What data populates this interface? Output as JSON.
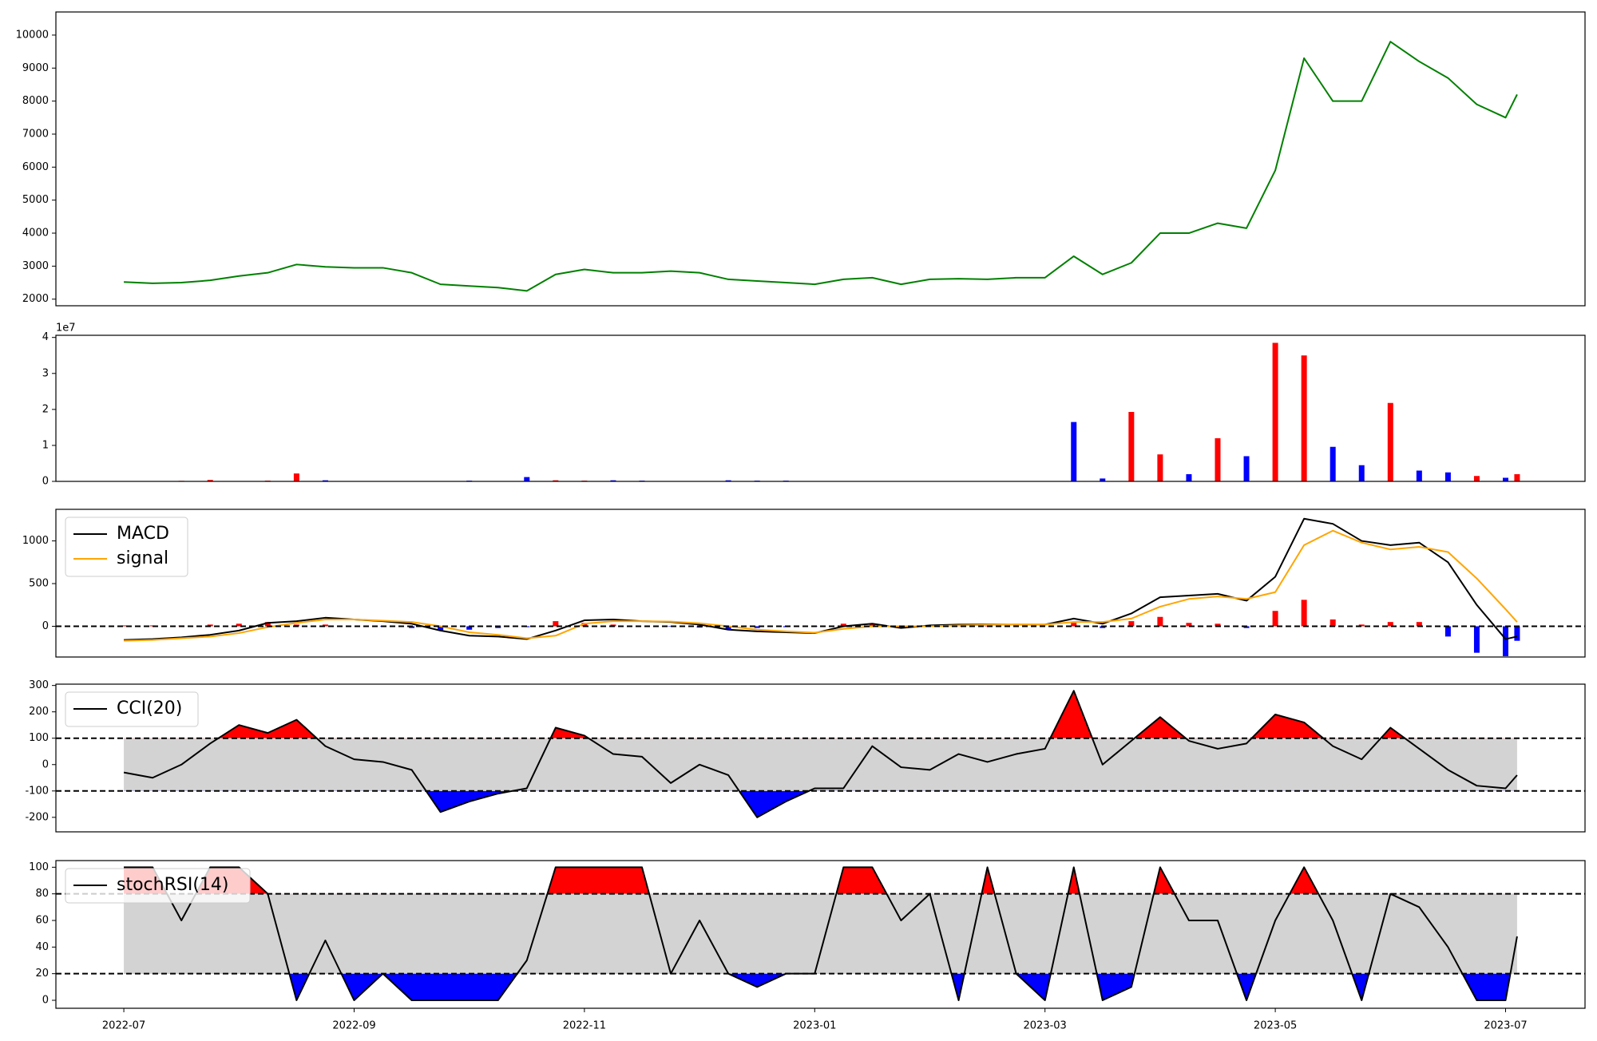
{
  "chart_data": [
    {
      "type": "line",
      "x": [
        0,
        0.25,
        0.5,
        0.75,
        1,
        1.25,
        1.5,
        1.75,
        2,
        2.25,
        2.5,
        2.75,
        3,
        3.25,
        3.5,
        3.75,
        4,
        4.25,
        4.5,
        4.75,
        5,
        5.25,
        5.5,
        5.75,
        6,
        6.25,
        6.5,
        6.75,
        7,
        7.25,
        7.5,
        7.75,
        8,
        8.25,
        8.5,
        8.75,
        9,
        9.25,
        9.5,
        9.75,
        10,
        10.25,
        10.5,
        10.75,
        11,
        11.25,
        11.5,
        11.75,
        12,
        12.1
      ],
      "series": [
        {
          "color": "green",
          "values": [
            2520,
            2480,
            2500,
            2570,
            2700,
            2800,
            3050,
            2980,
            2950,
            2950,
            2800,
            2450,
            2400,
            2350,
            2250,
            2750,
            2900,
            2800,
            2800,
            2850,
            2800,
            2600,
            2550,
            2500,
            2450,
            2600,
            2650,
            2450,
            2600,
            2620,
            2600,
            2650,
            2650,
            3300,
            2750,
            3100,
            4000,
            4000,
            4300,
            4150,
            5900,
            9300,
            8000,
            8000,
            9800,
            9200,
            8700,
            7900,
            7500,
            8200
          ]
        }
      ],
      "xlim": [
        -0.59,
        12.69
      ],
      "ylim": [
        1800,
        10700
      ],
      "yticks": [
        2000,
        3000,
        4000,
        5000,
        6000,
        7000,
        8000,
        9000,
        10000
      ]
    },
    {
      "type": "bar",
      "x": [
        0,
        0.25,
        0.5,
        0.75,
        1,
        1.25,
        1.5,
        1.75,
        2,
        2.25,
        2.5,
        2.75,
        3,
        3.25,
        3.5,
        3.75,
        4,
        4.25,
        4.5,
        4.75,
        5,
        5.25,
        5.5,
        5.75,
        6,
        6.25,
        6.5,
        6.75,
        7,
        7.25,
        7.5,
        7.75,
        8,
        8.25,
        8.5,
        8.75,
        9,
        9.25,
        9.5,
        9.75,
        10,
        10.25,
        10.5,
        10.75,
        11,
        11.25,
        11.5,
        11.75,
        12,
        12.1
      ],
      "series": [
        {
          "values": [
            100000,
            100000,
            150000,
            400000,
            100000,
            200000,
            2200000,
            300000,
            100000,
            100000,
            100000,
            100000,
            200000,
            100000,
            1200000,
            300000,
            200000,
            300000,
            200000,
            100000,
            100000,
            300000,
            200000,
            200000,
            100000,
            100000,
            100000,
            100000,
            100000,
            100000,
            100000,
            100000,
            100000,
            16500000,
            800000,
            19300000,
            7500000,
            2000000,
            12000000,
            7000000,
            38500000,
            35000000,
            9600000,
            4500000,
            21800000,
            3000000,
            2500000,
            1500000,
            1000000,
            2000000
          ],
          "colors": [
            "red",
            "blue",
            "red",
            "red",
            "red",
            "red",
            "red",
            "blue",
            "blue",
            "blue",
            "blue",
            "blue",
            "blue",
            "blue",
            "blue",
            "red",
            "red",
            "blue",
            "blue",
            "red",
            "blue",
            "blue",
            "blue",
            "blue",
            "blue",
            "red",
            "red",
            "blue",
            "red",
            "red",
            "blue",
            "red",
            "blue",
            "blue",
            "blue",
            "red",
            "red",
            "blue",
            "red",
            "blue",
            "red",
            "red",
            "blue",
            "blue",
            "red",
            "blue",
            "blue",
            "red",
            "blue",
            "red"
          ]
        }
      ],
      "xlim": [
        -0.59,
        12.69
      ],
      "ylim": [
        0,
        40600000
      ],
      "offset_label": "1e7",
      "yticks": [
        {
          "value": 0,
          "label": "0"
        },
        {
          "value": 10000000,
          "label": "1"
        },
        {
          "value": 20000000,
          "label": "2"
        },
        {
          "value": 30000000,
          "label": "3"
        },
        {
          "value": 40000000,
          "label": "4"
        }
      ]
    },
    {
      "type": "line",
      "x": [
        0,
        0.25,
        0.5,
        0.75,
        1,
        1.25,
        1.5,
        1.75,
        2,
        2.25,
        2.5,
        2.75,
        3,
        3.25,
        3.5,
        3.75,
        4,
        4.25,
        4.5,
        4.75,
        5,
        5.25,
        5.5,
        5.75,
        6,
        6.25,
        6.5,
        6.75,
        7,
        7.25,
        7.5,
        7.75,
        8,
        8.25,
        8.5,
        8.75,
        9,
        9.25,
        9.5,
        9.75,
        10,
        10.25,
        10.5,
        10.75,
        11,
        11.25,
        11.5,
        11.75,
        12,
        12.1
      ],
      "series": [
        {
          "style": "bar",
          "up_color": "red",
          "down_color": "blue",
          "values": [
            10,
            10,
            10,
            20,
            30,
            50,
            20,
            20,
            0,
            -5,
            -20,
            -50,
            -40,
            -20,
            -10,
            60,
            40,
            20,
            0,
            -5,
            -15,
            -40,
            -20,
            -10,
            -5,
            30,
            30,
            -20,
            10,
            10,
            5,
            0,
            0,
            40,
            -20,
            60,
            110,
            40,
            30,
            -20,
            180,
            310,
            80,
            20,
            50,
            50,
            -120,
            -310,
            -350,
            -170
          ]
        },
        {
          "name": "MACD",
          "color": "black",
          "values": [
            -160,
            -150,
            -130,
            -100,
            -50,
            40,
            60,
            100,
            80,
            60,
            30,
            -50,
            -110,
            -120,
            -150,
            -50,
            70,
            80,
            60,
            50,
            20,
            -40,
            -60,
            -70,
            -80,
            0,
            30,
            -20,
            10,
            20,
            20,
            20,
            20,
            90,
            30,
            150,
            340,
            360,
            380,
            300,
            580,
            1260,
            1200,
            1000,
            950,
            980,
            750,
            250,
            -150,
            -120
          ]
        },
        {
          "name": "signal",
          "color": "orange",
          "values": [
            -170,
            -160,
            -140,
            -120,
            -80,
            -10,
            40,
            80,
            80,
            65,
            50,
            0,
            -70,
            -100,
            -140,
            -110,
            30,
            60,
            60,
            55,
            35,
            0,
            -40,
            -60,
            -75,
            -30,
            0,
            0,
            0,
            10,
            15,
            20,
            20,
            50,
            50,
            90,
            230,
            320,
            350,
            320,
            400,
            950,
            1120,
            980,
            900,
            930,
            870,
            560,
            200,
            50
          ]
        }
      ],
      "xlim": [
        -0.59,
        12.69
      ],
      "ylim": [
        -360,
        1370
      ],
      "yticks": [
        0,
        500,
        1000
      ],
      "hlines": [
        0
      ],
      "legend": "upper left"
    },
    {
      "type": "line",
      "x": [
        0,
        0.25,
        0.5,
        0.75,
        1,
        1.25,
        1.5,
        1.75,
        2,
        2.25,
        2.5,
        2.75,
        3,
        3.25,
        3.5,
        3.75,
        4,
        4.25,
        4.5,
        4.75,
        5,
        5.25,
        5.5,
        5.75,
        6,
        6.25,
        6.5,
        6.75,
        7,
        7.25,
        7.5,
        7.75,
        8,
        8.25,
        8.5,
        8.75,
        9,
        9.25,
        9.5,
        9.75,
        10,
        10.25,
        10.5,
        10.75,
        11,
        11.25,
        11.5,
        11.75,
        12,
        12.1
      ],
      "series": [
        {
          "name": "CCI(20)",
          "color": "black",
          "values": [
            -30,
            -50,
            0,
            80,
            150,
            120,
            170,
            70,
            20,
            10,
            -20,
            -180,
            -140,
            -110,
            -90,
            140,
            110,
            40,
            30,
            -70,
            0,
            -40,
            -200,
            -140,
            -90,
            -90,
            70,
            -10,
            -20,
            40,
            10,
            40,
            60,
            280,
            0,
            90,
            180,
            90,
            60,
            80,
            190,
            160,
            70,
            20,
            140,
            60,
            -20,
            -80,
            -90,
            -40
          ]
        }
      ],
      "xlim": [
        -0.59,
        12.69
      ],
      "ylim": [
        -255,
        305
      ],
      "yticks": [
        -200,
        -100,
        0,
        100,
        200,
        300
      ],
      "band": [
        -100,
        100
      ],
      "band_color": "lightgray",
      "fill_above": "red",
      "fill_below": "blue",
      "hlines": [
        -100,
        100
      ],
      "legend": "upper left"
    },
    {
      "type": "line",
      "x": [
        0,
        0.25,
        0.5,
        0.75,
        1,
        1.25,
        1.5,
        1.75,
        2,
        2.25,
        2.5,
        2.75,
        3,
        3.25,
        3.5,
        3.75,
        4,
        4.25,
        4.5,
        4.75,
        5,
        5.25,
        5.5,
        5.75,
        6,
        6.25,
        6.5,
        6.75,
        7,
        7.25,
        7.5,
        7.75,
        8,
        8.25,
        8.5,
        8.75,
        9,
        9.25,
        9.5,
        9.75,
        10,
        10.25,
        10.5,
        10.75,
        11,
        11.25,
        11.5,
        11.75,
        12,
        12.1
      ],
      "series": [
        {
          "name": "stochRSI(14)",
          "color": "black",
          "values": [
            100,
            100,
            60,
            100,
            100,
            80,
            0,
            45,
            0,
            20,
            0,
            0,
            0,
            0,
            30,
            100,
            100,
            100,
            100,
            20,
            60,
            20,
            10,
            20,
            20,
            100,
            100,
            60,
            80,
            0,
            100,
            20,
            0,
            100,
            0,
            10,
            100,
            60,
            60,
            0,
            60,
            100,
            60,
            0,
            80,
            70,
            40,
            0,
            0,
            48
          ]
        }
      ],
      "xlim": [
        -0.59,
        12.69
      ],
      "ylim": [
        -6,
        105
      ],
      "yticks": [
        0,
        20,
        40,
        60,
        80,
        100
      ],
      "band": [
        20,
        80
      ],
      "band_color": "lightgray",
      "fill_above": "red",
      "fill_below": "blue",
      "hlines": [
        20,
        80
      ],
      "legend": "upper left",
      "xticks": [
        {
          "value": 0,
          "label": "2022-07"
        },
        {
          "value": 2,
          "label": "2022-09"
        },
        {
          "value": 4,
          "label": "2022-11"
        },
        {
          "value": 6,
          "label": "2023-01"
        },
        {
          "value": 8,
          "label": "2023-03"
        },
        {
          "value": 10,
          "label": "2023-05"
        },
        {
          "value": 12,
          "label": "2023-07"
        }
      ]
    }
  ]
}
